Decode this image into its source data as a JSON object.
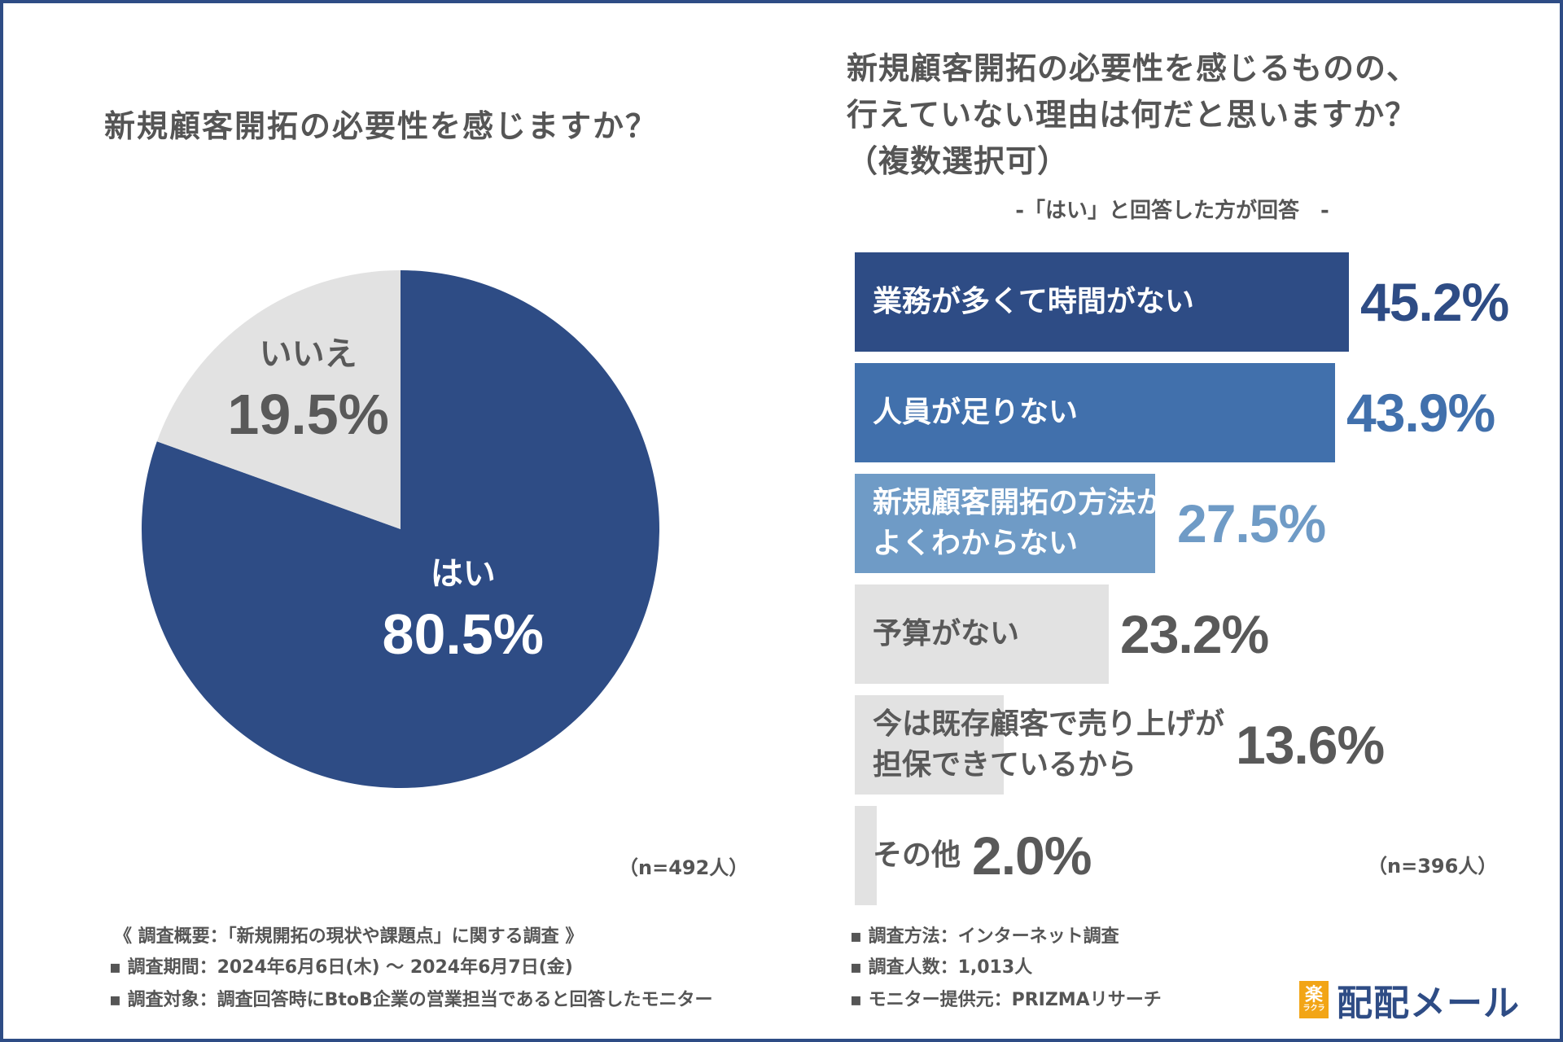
{
  "left": {
    "title": "新規顧客開拓の必要性を感じますか？",
    "n": "（n=492人）"
  },
  "right": {
    "title_line1": "新規顧客開拓の必要性を感じるものの、",
    "title_line2": "行えていない理由は何だと思いますか？",
    "title_line3": "（複数選択可）",
    "subtitle": "-「はい」と回答した方が回答　-",
    "n": "（n=396人）"
  },
  "chart_data": [
    {
      "type": "pie",
      "title": "新規顧客開拓の必要性を感じますか？",
      "slices": [
        {
          "label": "はい",
          "value": 80.5,
          "value_label": "80.5%",
          "color": "#2e4c85",
          "text_color": "#ffffff"
        },
        {
          "label": "いいえ",
          "value": 19.5,
          "value_label": "19.5%",
          "color": "#e2e2e2",
          "text_color": "#595959"
        }
      ]
    },
    {
      "type": "bar",
      "orientation": "horizontal",
      "title": "新規顧客開拓の必要性を感じるものの、行えていない理由は何だと思いますか？（複数選択可）",
      "xlim": [
        0,
        45.2
      ],
      "bars": [
        {
          "label": "業務が多くて時間がない",
          "value": 45.2,
          "value_label": "45.2%",
          "color": "#2e4c85",
          "label_color": "#ffffff",
          "value_color": "#2e4c85"
        },
        {
          "label": "人員が足りない",
          "value": 43.9,
          "value_label": "43.9%",
          "color": "#4170ac",
          "label_color": "#ffffff",
          "value_color": "#4170ac"
        },
        {
          "label": "新規顧客開拓の方法がよくわからない",
          "label_lines": [
            "新規顧客開拓の方法が",
            "よくわからない"
          ],
          "value": 27.5,
          "value_label": "27.5%",
          "color": "#6f9bc6",
          "label_color": "#ffffff",
          "value_color": "#6f9bc6"
        },
        {
          "label": "予算がない",
          "value": 23.2,
          "value_label": "23.2%",
          "color": "#e2e2e2",
          "label_color": "#595959",
          "value_color": "#595959"
        },
        {
          "label": "今は既存顧客で売り上げが担保できているから",
          "label_lines": [
            "今は既存顧客で売り上げが",
            "担保できているから"
          ],
          "value": 13.6,
          "value_label": "13.6%",
          "color": "#e2e2e2",
          "label_color": "#595959",
          "value_color": "#595959"
        },
        {
          "label": "その他",
          "value": 2.0,
          "value_label": "2.0%",
          "color": "#e2e2e2",
          "label_color": "#595959",
          "value_color": "#595959"
        }
      ]
    }
  ],
  "footer": {
    "overview": "《 調査概要：「新規開拓の現状や課題点」に関する調査 》",
    "period": "▪ 調査期間：2024年6月6日(木) 〜 2024年6月7日(金)",
    "target": "▪ 調査対象：調査回答時にBtoB企業の営業担当であると回答したモニター",
    "method": "▪ 調査方法：インターネット調査",
    "count": "▪ 調査人数：1,013人",
    "provider": "▪ モニター提供元：PRIZMAリサーチ"
  },
  "logo": {
    "mark": "楽",
    "mark_sub": "ラクラ",
    "text": "配配メール"
  }
}
